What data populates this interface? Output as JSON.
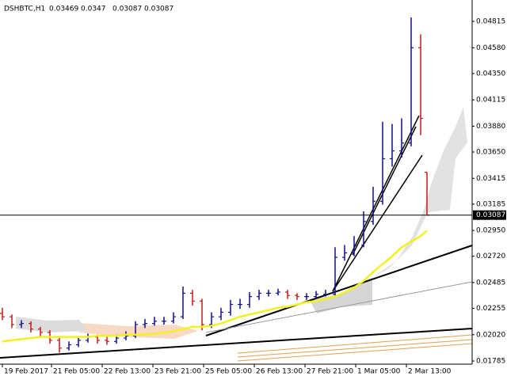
{
  "chart_data": {
    "type": "ohlc",
    "title": "DSHBTC,H1",
    "up_color": "#10108a",
    "down_color": "#c41818",
    "xlim": [
      -1.5,
      296.5
    ],
    "ylim": [
      0.01757,
      0.05006
    ],
    "yticks": [
      0.04815,
      {
        "value": 0.0458,
        "label": "0.04580"
      },
      {
        "value": 0.0435,
        "label": "0.04350"
      },
      0.04115,
      {
        "value": 0.0388,
        "label": "0.03880"
      },
      {
        "value": 0.0365,
        "label": "0.03650"
      },
      0.03415,
      {
        "value": 0.03185,
        "label": "0.03185"
      },
      {
        "value": 0.0295,
        "label": "0.02950"
      },
      {
        "value": 0.0272,
        "label": "0.02720"
      },
      0.02485,
      0.02255,
      {
        "value": 0.0202,
        "label": "0.02020"
      },
      0.01785
    ],
    "xticks": [
      {
        "value": 0,
        "label": "19 Feb 2017"
      },
      {
        "value": 31,
        "label": "21 Feb 05:00"
      },
      {
        "value": 63,
        "label": "22 Feb 13:00"
      },
      {
        "value": 95,
        "label": "23 Feb 21:00"
      },
      {
        "value": 127,
        "label": "25 Feb 05:00"
      },
      {
        "value": 159,
        "label": "26 Feb 13:00"
      },
      {
        "value": 191,
        "label": "27 Feb 21:00"
      },
      {
        "value": 223,
        "label": "1 Mar 05:00"
      },
      {
        "value": 255,
        "label": "2 Mar 13:00"
      }
    ],
    "x": [
      0,
      6,
      12,
      18,
      24,
      30,
      36,
      42,
      48,
      54,
      60,
      66,
      72,
      78,
      84,
      90,
      96,
      102,
      108,
      114,
      120,
      126,
      132,
      138,
      144,
      150,
      156,
      162,
      168,
      174,
      180,
      186,
      192,
      198,
      204,
      210,
      216,
      222,
      228,
      234,
      240,
      246,
      252,
      258,
      264,
      268
    ],
    "open": [
      0.0221,
      0.0218,
      0.0211,
      0.0212,
      0.0207,
      0.0204,
      0.0197,
      0.019,
      0.0193,
      0.0197,
      0.02,
      0.0197,
      0.0196,
      0.0199,
      0.0201,
      0.0211,
      0.0212,
      0.0214,
      0.0214,
      0.0218,
      0.0239,
      0.0232,
      0.0211,
      0.0218,
      0.0222,
      0.0229,
      0.0229,
      0.0236,
      0.0239,
      0.0239,
      0.024,
      0.0237,
      0.0236,
      0.0236,
      0.0238,
      0.0238,
      0.0271,
      0.0275,
      0.0282,
      0.0303,
      0.0321,
      0.0359,
      0.0366,
      0.0373,
      0.0458,
      0.03469
    ],
    "high": [
      0.0226,
      0.022,
      0.0215,
      0.0214,
      0.0209,
      0.0206,
      0.0199,
      0.0196,
      0.02,
      0.0203,
      0.0202,
      0.02,
      0.0202,
      0.0205,
      0.0214,
      0.0216,
      0.0218,
      0.0218,
      0.0222,
      0.0245,
      0.0242,
      0.0234,
      0.0222,
      0.0226,
      0.0233,
      0.0234,
      0.024,
      0.0242,
      0.0242,
      0.0243,
      0.0242,
      0.0239,
      0.0239,
      0.0241,
      0.0242,
      0.028,
      0.0282,
      0.029,
      0.0312,
      0.0334,
      0.0392,
      0.039,
      0.0395,
      0.0485,
      0.047,
      0.0347
    ],
    "low": [
      0.0215,
      0.0208,
      0.0208,
      0.0204,
      0.02,
      0.0194,
      0.0186,
      0.0188,
      0.0191,
      0.0195,
      0.0194,
      0.0193,
      0.0194,
      0.0197,
      0.0199,
      0.0208,
      0.021,
      0.0211,
      0.0212,
      0.0216,
      0.0228,
      0.0206,
      0.0208,
      0.0215,
      0.0219,
      0.0225,
      0.0226,
      0.0233,
      0.0236,
      0.0237,
      0.0234,
      0.0233,
      0.0233,
      0.0234,
      0.0236,
      0.0237,
      0.0268,
      0.0272,
      0.028,
      0.03,
      0.0318,
      0.0352,
      0.036,
      0.037,
      0.038,
      0.03087
    ],
    "close": [
      0.0218,
      0.0211,
      0.0212,
      0.0207,
      0.0204,
      0.0197,
      0.019,
      0.0193,
      0.0197,
      0.02,
      0.0197,
      0.0196,
      0.0199,
      0.0201,
      0.0211,
      0.0212,
      0.0214,
      0.0214,
      0.0218,
      0.0239,
      0.0232,
      0.0211,
      0.0218,
      0.0222,
      0.0229,
      0.0229,
      0.0236,
      0.0239,
      0.0239,
      0.024,
      0.0237,
      0.0236,
      0.0236,
      0.0238,
      0.0238,
      0.0271,
      0.0275,
      0.0282,
      0.0303,
      0.0321,
      0.0359,
      0.0366,
      0.0373,
      0.0458,
      0.0395,
      0.03087
    ],
    "ma": {
      "color": "#f2f21e",
      "values": [
        0.0196,
        0.0197,
        0.0198,
        0.0199,
        0.02,
        0.02,
        0.02,
        0.02,
        0.02,
        0.02,
        0.0201,
        0.0201,
        0.0201,
        0.0202,
        0.0202,
        0.0202,
        0.0203,
        0.0204,
        0.0205,
        0.0207,
        0.0209,
        0.0209,
        0.021,
        0.0212,
        0.0215,
        0.0218,
        0.022,
        0.0222,
        0.0224,
        0.0226,
        0.0227,
        0.0229,
        0.0231,
        0.0232,
        0.0234,
        0.0236,
        0.024,
        0.0244,
        0.025,
        0.0258,
        0.0265,
        0.0272,
        0.028,
        0.0285,
        0.029,
        0.0295
      ]
    }
  }
}
